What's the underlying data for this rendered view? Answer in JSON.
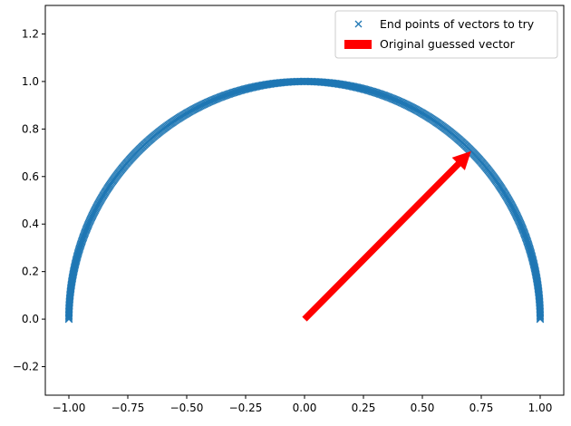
{
  "chart_data": {
    "type": "scatter",
    "title": "",
    "xlabel": "",
    "ylabel": "",
    "xlim": [
      -1.1,
      1.1
    ],
    "ylim": [
      -0.32,
      1.32
    ],
    "x_ticks": [
      -1.0,
      -0.75,
      -0.5,
      -0.25,
      0.0,
      0.25,
      0.5,
      0.75,
      1.0
    ],
    "x_tick_labels": [
      "−1.00",
      "−0.75",
      "−0.50",
      "−0.25",
      "0.00",
      "0.25",
      "0.50",
      "0.75",
      "1.00"
    ],
    "y_ticks": [
      -0.2,
      0.0,
      0.2,
      0.4,
      0.6,
      0.8,
      1.0,
      1.2
    ],
    "y_tick_labels": [
      "−0.2",
      "0.0",
      "0.2",
      "0.4",
      "0.6",
      "0.8",
      "1.0",
      "1.2"
    ],
    "grid": false,
    "legend_position": "upper-right",
    "series": [
      {
        "name": "End points of vectors to try",
        "kind": "scatter",
        "marker": "x",
        "color": "#1f77b4",
        "description_of_points": "unit semicircle",
        "angle_range_deg": [
          0,
          180
        ],
        "radius": 1.0
      },
      {
        "name": "Original guessed vector",
        "kind": "arrow",
        "color": "#ff0000",
        "start": [
          0.0,
          0.0
        ],
        "end": [
          0.7071,
          0.7071
        ]
      }
    ]
  }
}
